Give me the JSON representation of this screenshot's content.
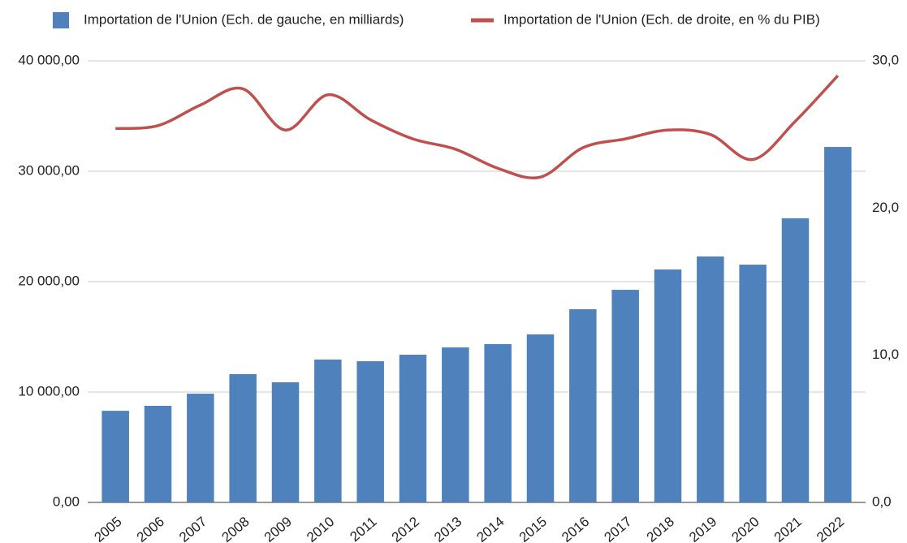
{
  "chart_data": {
    "type": "bar",
    "categories": [
      "2005",
      "2006",
      "2007",
      "2008",
      "2009",
      "2010",
      "2011",
      "2012",
      "2013",
      "2014",
      "2015",
      "2016",
      "2017",
      "2018",
      "2019",
      "2020",
      "2021",
      "2022"
    ],
    "series": [
      {
        "name": "Importation de l'Union (Ech. de gauche, en milliards)",
        "color": "#4f81bd",
        "type": "bar",
        "values": [
          8300,
          8750,
          9850,
          11620,
          10880,
          12940,
          12790,
          13380,
          14040,
          14340,
          15220,
          17500,
          19260,
          21100,
          22280,
          21540,
          25740,
          32200
        ]
      },
      {
        "name": "Importation de l'Union (Ech. de droite, en % du PIB)",
        "color": "#c0504d",
        "type": "line",
        "axis": "y2",
        "values": [
          25.4,
          25.6,
          27.0,
          28.1,
          25.3,
          27.7,
          26.0,
          24.7,
          24.0,
          22.7,
          22.1,
          24.1,
          24.7,
          25.3,
          25.0,
          23.3,
          25.9,
          29.0
        ]
      }
    ],
    "ylim": [
      0,
      40000
    ],
    "yticks": [
      {
        "value": 0,
        "label": "0,00"
      },
      {
        "value": 10000,
        "label": "10 000,00"
      },
      {
        "value": 20000,
        "label": "20 000,00"
      },
      {
        "value": 30000,
        "label": "30 000,00"
      },
      {
        "value": 40000,
        "label": "40 000,00"
      }
    ],
    "y2lim": [
      0,
      30
    ],
    "y2ticks": [
      {
        "value": 0,
        "label": "0,0"
      },
      {
        "value": 10,
        "label": "10,0"
      },
      {
        "value": 20,
        "label": "20,0"
      },
      {
        "value": 30,
        "label": "30,0"
      }
    ],
    "grid": true,
    "legend": "top"
  }
}
